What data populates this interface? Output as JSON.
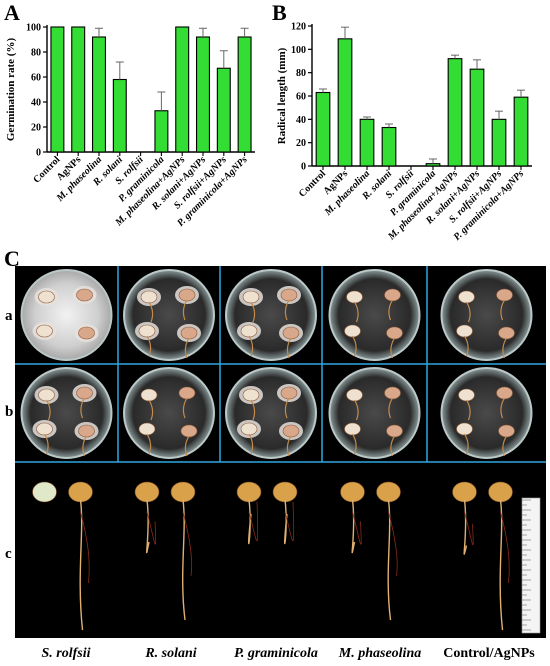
{
  "chart_data": [
    {
      "panel": "A",
      "type": "bar",
      "ylabel": "Germination rate (%)",
      "ylim": [
        0,
        100
      ],
      "yticks": [
        0,
        20,
        40,
        60,
        80,
        100
      ],
      "categories": [
        "Control",
        "AgNPs",
        "M. phaseolina",
        "R. solani",
        "S. rolfsii",
        "P. graminicola",
        "M. phaseolina+AgNPs",
        "R. solani+AgNPs",
        "S. rolfsii+AgNPs",
        "P. graminicola+AgNPs"
      ],
      "values": [
        100,
        100,
        92,
        58,
        0,
        33,
        100,
        92,
        67,
        92
      ],
      "errors": [
        0,
        0,
        7,
        14,
        0,
        15,
        0,
        7,
        14,
        7
      ],
      "bar_color": "#33dd33"
    },
    {
      "panel": "B",
      "type": "bar",
      "ylabel": "Radical length (mm)",
      "ylim": [
        0,
        120
      ],
      "yticks": [
        0,
        20,
        40,
        60,
        80,
        100,
        120
      ],
      "categories": [
        "Control",
        "AgNPs",
        "M. phaseolina",
        "R. solani",
        "S. rolfsii",
        "P. graminicola",
        "M. phaseolina+AgNPs",
        "R. solani+AgNPs",
        "S. rolfsii+AgNPs",
        "P. graminicola+AgNPs"
      ],
      "values": [
        63,
        109,
        40,
        33,
        0,
        2,
        92,
        83,
        40,
        59
      ],
      "errors": [
        3,
        10,
        2,
        3,
        0,
        4,
        3,
        8,
        7,
        6
      ],
      "bar_color": "#33dd33"
    }
  ],
  "panel_c": {
    "label": "C",
    "rows": [
      "a",
      "b",
      "c"
    ],
    "columns": [
      "S. rolfsii",
      "R. solani",
      "P. graminicola",
      "M. phaseolina",
      "Control/AgNPs"
    ]
  }
}
